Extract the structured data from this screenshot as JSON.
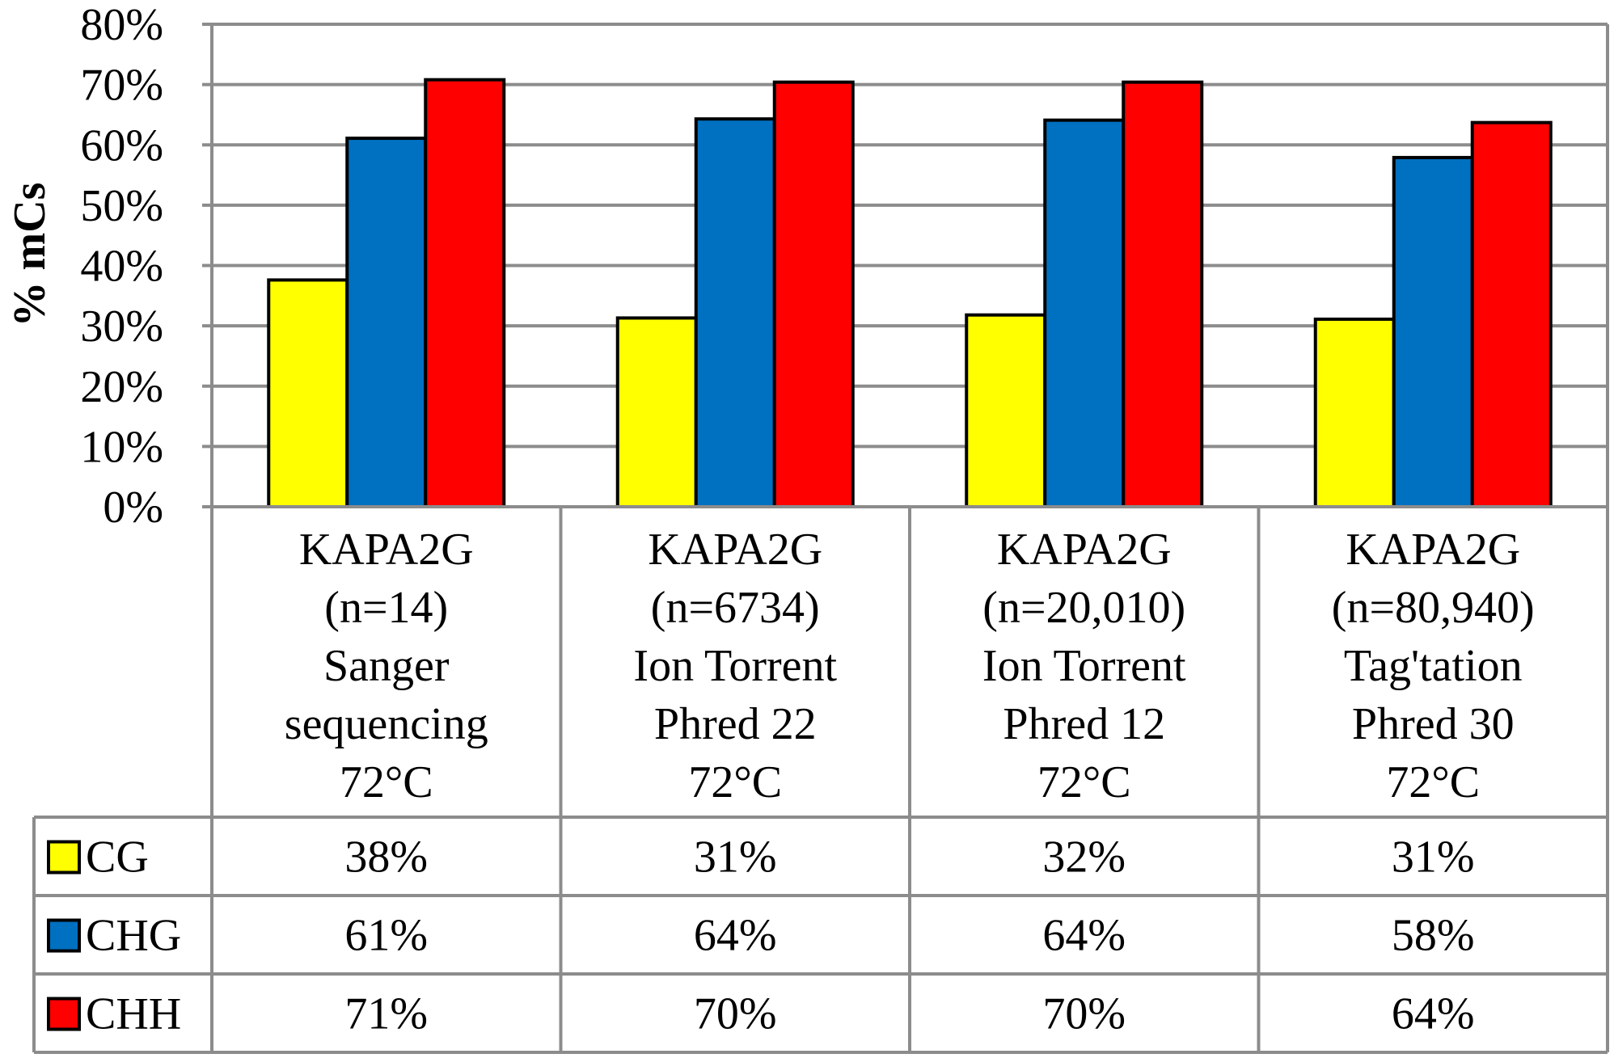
{
  "chart_data": {
    "type": "bar",
    "title": "",
    "xlabel": "",
    "ylabel": "% mCs",
    "ylim": [
      0,
      80
    ],
    "y_ticks": [
      "0%",
      "10%",
      "20%",
      "30%",
      "40%",
      "50%",
      "60%",
      "70%",
      "80%"
    ],
    "grid": true,
    "legend_placement": "data-table",
    "categories": [
      [
        "KAPA2G",
        "(n=14)",
        "Sanger",
        "sequencing",
        "72°C"
      ],
      [
        "KAPA2G",
        "(n=6734)",
        "Ion Torrent",
        "Phred 22",
        "72°C"
      ],
      [
        "KAPA2G",
        "(n=20,010)",
        "Ion Torrent",
        "Phred 12",
        "72°C"
      ],
      [
        "KAPA2G",
        "(n=80,940)",
        "Tag'tation",
        "Phred 30",
        "72°C"
      ]
    ],
    "series": [
      {
        "name": "CG",
        "color": "#FFFF00",
        "values": [
          37.6,
          31.3,
          31.8,
          31.1
        ],
        "labels": [
          "38%",
          "31%",
          "32%",
          "31%"
        ]
      },
      {
        "name": "CHG",
        "color": "#0070C0",
        "values": [
          61.1,
          64.3,
          64.1,
          57.9
        ],
        "labels": [
          "61%",
          "64%",
          "64%",
          "58%"
        ]
      },
      {
        "name": "CHH",
        "color": "#FF0000",
        "values": [
          70.8,
          70.4,
          70.4,
          63.7
        ],
        "labels": [
          "71%",
          "70%",
          "70%",
          "64%"
        ]
      }
    ]
  }
}
